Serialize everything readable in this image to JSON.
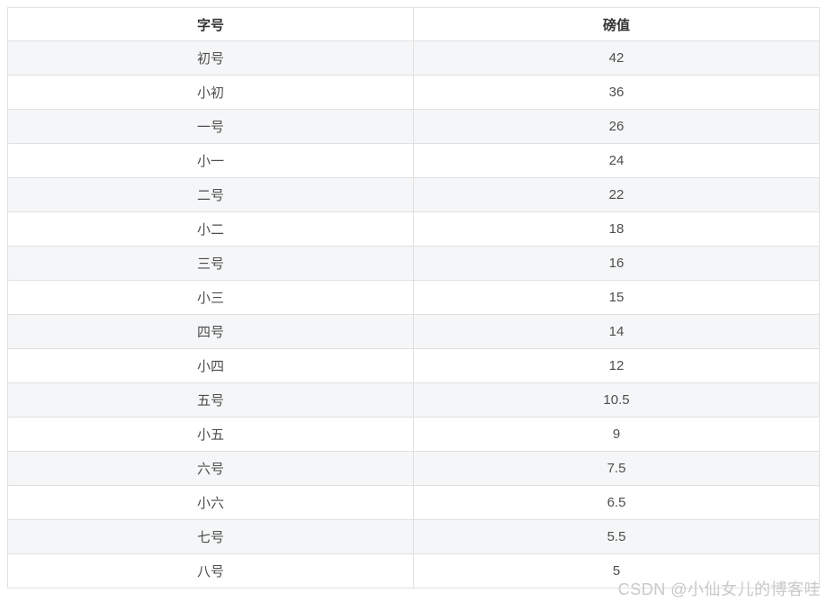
{
  "chart_data": {
    "type": "table",
    "columns": [
      "字号",
      "磅值"
    ],
    "rows": [
      [
        "初号",
        42
      ],
      [
        "小初",
        36
      ],
      [
        "一号",
        26
      ],
      [
        "小一",
        24
      ],
      [
        "二号",
        22
      ],
      [
        "小二",
        18
      ],
      [
        "三号",
        16
      ],
      [
        "小三",
        15
      ],
      [
        "四号",
        14
      ],
      [
        "小四",
        12
      ],
      [
        "五号",
        10.5
      ],
      [
        "小五",
        9
      ],
      [
        "六号",
        7.5
      ],
      [
        "小六",
        6.5
      ],
      [
        "七号",
        5.5
      ],
      [
        "八号",
        5
      ]
    ]
  },
  "table": {
    "columns": [
      {
        "label": "字号"
      },
      {
        "label": "磅值"
      }
    ],
    "rows": [
      {
        "name": "初号",
        "value": "42"
      },
      {
        "name": "小初",
        "value": "36"
      },
      {
        "name": "一号",
        "value": "26"
      },
      {
        "name": "小一",
        "value": "24"
      },
      {
        "name": "二号",
        "value": "22"
      },
      {
        "name": "小二",
        "value": "18"
      },
      {
        "name": "三号",
        "value": "16"
      },
      {
        "name": "小三",
        "value": "15"
      },
      {
        "name": "四号",
        "value": "14"
      },
      {
        "name": "小四",
        "value": "12"
      },
      {
        "name": "五号",
        "value": "10.5"
      },
      {
        "name": "小五",
        "value": "9"
      },
      {
        "name": "六号",
        "value": "7.5"
      },
      {
        "name": "小六",
        "value": "6.5"
      },
      {
        "name": "七号",
        "value": "5.5"
      },
      {
        "name": "八号",
        "value": "5"
      }
    ]
  },
  "watermark": {
    "text": "CSDN @小仙女儿的博客哇"
  },
  "colors": {
    "background": "#ffffff",
    "stripe": "#f5f6f7",
    "border": "#e1e1e1",
    "header_text": "#333333",
    "cell_text": "#4d4d4d",
    "watermark": "#c9c9c9"
  }
}
